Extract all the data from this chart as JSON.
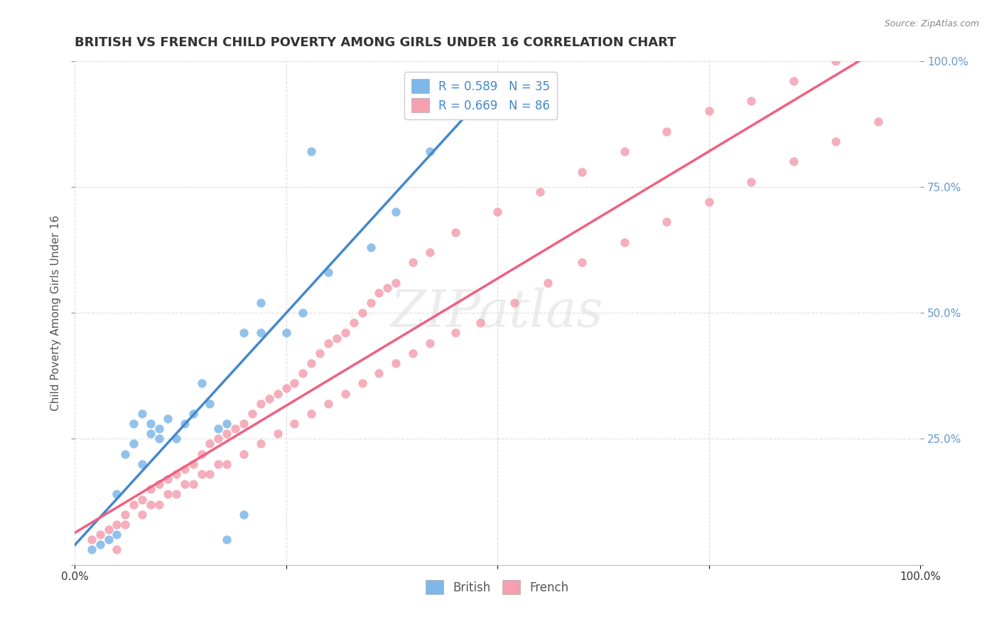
{
  "title": "BRITISH VS FRENCH CHILD POVERTY AMONG GIRLS UNDER 16 CORRELATION CHART",
  "source": "Source: ZipAtlas.com",
  "ylabel": "Child Poverty Among Girls Under 16",
  "xlim": [
    0,
    1
  ],
  "ylim": [
    0,
    1
  ],
  "xticks": [
    0,
    0.25,
    0.5,
    0.75,
    1.0
  ],
  "yticks": [
    0,
    0.25,
    0.5,
    0.75,
    1.0
  ],
  "xticklabels": [
    "0.0%",
    "",
    "",
    "",
    "100.0%"
  ],
  "yticklabels": [
    "",
    "25.0%",
    "50.0%",
    "75.0%",
    "100.0%"
  ],
  "british_R": 0.589,
  "british_N": 35,
  "french_R": 0.669,
  "french_N": 86,
  "british_color": "#7EB8E8",
  "french_color": "#F4A0B0",
  "british_line_color": "#4488CC",
  "french_line_color": "#F06080",
  "watermark": "ZIPatlas",
  "british_x": [
    0.02,
    0.03,
    0.04,
    0.05,
    0.05,
    0.06,
    0.07,
    0.07,
    0.08,
    0.08,
    0.09,
    0.09,
    0.1,
    0.1,
    0.11,
    0.12,
    0.13,
    0.14,
    0.15,
    0.16,
    0.17,
    0.18,
    0.2,
    0.22,
    0.25,
    0.27,
    0.3,
    0.35,
    0.38,
    0.4,
    0.22,
    0.28,
    0.42,
    0.2,
    0.18
  ],
  "british_y": [
    0.03,
    0.04,
    0.05,
    0.06,
    0.14,
    0.22,
    0.24,
    0.28,
    0.3,
    0.2,
    0.26,
    0.28,
    0.25,
    0.27,
    0.29,
    0.25,
    0.28,
    0.3,
    0.36,
    0.32,
    0.27,
    0.28,
    0.46,
    0.46,
    0.46,
    0.5,
    0.58,
    0.63,
    0.7,
    0.9,
    0.52,
    0.82,
    0.82,
    0.1,
    0.05
  ],
  "french_x": [
    0.02,
    0.03,
    0.04,
    0.05,
    0.06,
    0.07,
    0.08,
    0.09,
    0.1,
    0.11,
    0.12,
    0.13,
    0.14,
    0.15,
    0.16,
    0.17,
    0.18,
    0.19,
    0.2,
    0.21,
    0.22,
    0.23,
    0.24,
    0.25,
    0.26,
    0.27,
    0.28,
    0.29,
    0.3,
    0.31,
    0.32,
    0.33,
    0.34,
    0.35,
    0.36,
    0.37,
    0.38,
    0.4,
    0.42,
    0.45,
    0.5,
    0.55,
    0.6,
    0.65,
    0.7,
    0.75,
    0.8,
    0.85,
    0.9,
    0.05,
    0.08,
    0.1,
    0.12,
    0.14,
    0.16,
    0.18,
    0.2,
    0.22,
    0.24,
    0.26,
    0.28,
    0.3,
    0.32,
    0.34,
    0.36,
    0.38,
    0.4,
    0.42,
    0.45,
    0.48,
    0.52,
    0.56,
    0.6,
    0.65,
    0.7,
    0.75,
    0.8,
    0.85,
    0.9,
    0.95,
    0.06,
    0.09,
    0.11,
    0.13,
    0.15,
    0.17
  ],
  "french_y": [
    0.05,
    0.06,
    0.07,
    0.08,
    0.1,
    0.12,
    0.13,
    0.15,
    0.16,
    0.17,
    0.18,
    0.19,
    0.2,
    0.22,
    0.24,
    0.25,
    0.26,
    0.27,
    0.28,
    0.3,
    0.32,
    0.33,
    0.34,
    0.35,
    0.36,
    0.38,
    0.4,
    0.42,
    0.44,
    0.45,
    0.46,
    0.48,
    0.5,
    0.52,
    0.54,
    0.55,
    0.56,
    0.6,
    0.62,
    0.66,
    0.7,
    0.74,
    0.78,
    0.82,
    0.86,
    0.9,
    0.92,
    0.96,
    1.0,
    0.03,
    0.1,
    0.12,
    0.14,
    0.16,
    0.18,
    0.2,
    0.22,
    0.24,
    0.26,
    0.28,
    0.3,
    0.32,
    0.34,
    0.36,
    0.38,
    0.4,
    0.42,
    0.44,
    0.46,
    0.48,
    0.52,
    0.56,
    0.6,
    0.64,
    0.68,
    0.72,
    0.76,
    0.8,
    0.84,
    0.88,
    0.08,
    0.12,
    0.14,
    0.16,
    0.18,
    0.2
  ],
  "background_color": "#FFFFFF",
  "grid_color": "#CCCCCC",
  "title_color": "#333333",
  "axis_label_color": "#555555",
  "tick_label_color_right": "#6699CC",
  "tick_label_color_bottom": "#333333"
}
